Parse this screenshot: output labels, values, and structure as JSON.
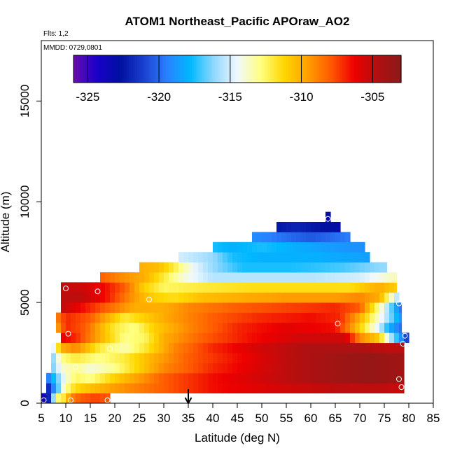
{
  "chart_data": {
    "type": "heatmap",
    "title": "ATOM1 Northeast_Pacific APOraw_AO2",
    "annotations": [
      "Flts: 1,2",
      "MMDD: 0729,0801"
    ],
    "xlabel": "Latitude (deg N)",
    "ylabel": "Altitude (m)",
    "xlim": [
      5,
      85
    ],
    "ylim": [
      0,
      18000
    ],
    "xticks": [
      5,
      10,
      15,
      20,
      25,
      30,
      35,
      40,
      45,
      50,
      55,
      60,
      65,
      70,
      75,
      80,
      85
    ],
    "yticks": [
      0,
      5000,
      10000,
      15000
    ],
    "colorbar": {
      "min": -326,
      "max": -303,
      "ticks": [
        -325,
        -320,
        -315,
        -310,
        -305
      ],
      "colors": [
        "#6a0dad",
        "#1a00c8",
        "#0010a0",
        "#1a40d0",
        "#2a80ff",
        "#00b8ff",
        "#90d8ff",
        "#f0f8ff",
        "#ffff80",
        "#ffd700",
        "#ff9f00",
        "#ff5a00",
        "#ee0000",
        "#b01010",
        "#8b1a1a"
      ]
    },
    "marker": {
      "x": 35,
      "label": "arrow"
    },
    "rows": [
      {
        "y0": 0,
        "y1": 500,
        "x0": 5,
        "x1": 19,
        "anchors": [
          [
            5,
            -325
          ],
          [
            6.5,
            -322
          ],
          [
            8,
            -313
          ],
          [
            9.5,
            -312
          ],
          [
            11,
            -309
          ],
          [
            13,
            -308
          ],
          [
            16,
            -307.5
          ],
          [
            19,
            -308
          ]
        ]
      },
      {
        "y0": 500,
        "y1": 1000,
        "x0": 6,
        "x1": 79,
        "anchors": [
          [
            6,
            -323
          ],
          [
            8,
            -318
          ],
          [
            9.5,
            -314
          ],
          [
            11,
            -312
          ],
          [
            13,
            -311
          ],
          [
            20,
            -309.5
          ],
          [
            30,
            -308
          ],
          [
            40,
            -306.5
          ],
          [
            55,
            -305.5
          ],
          [
            65,
            -305
          ],
          [
            75,
            -305
          ],
          [
            79,
            -305.5
          ]
        ]
      },
      {
        "y0": 1000,
        "y1": 1500,
        "x0": 6,
        "x1": 79,
        "anchors": [
          [
            6,
            -320
          ],
          [
            8,
            -317
          ],
          [
            10,
            -314
          ],
          [
            12,
            -312.5
          ],
          [
            15,
            -313
          ],
          [
            20,
            -311
          ],
          [
            30,
            -308
          ],
          [
            40,
            -306.5
          ],
          [
            55,
            -305
          ],
          [
            65,
            -304
          ],
          [
            72,
            -303.5
          ],
          [
            79,
            -304
          ]
        ]
      },
      {
        "y0": 1500,
        "y1": 2000,
        "x0": 7,
        "x1": 79,
        "anchors": [
          [
            7,
            -317
          ],
          [
            9,
            -314
          ],
          [
            12,
            -313
          ],
          [
            15,
            -314
          ],
          [
            20,
            -313
          ],
          [
            25,
            -311
          ],
          [
            30,
            -309
          ],
          [
            40,
            -307
          ],
          [
            55,
            -305
          ],
          [
            65,
            -304
          ],
          [
            72,
            -303.5
          ],
          [
            79,
            -304
          ]
        ]
      },
      {
        "y0": 2000,
        "y1": 2500,
        "x0": 7,
        "x1": 79,
        "anchors": [
          [
            7,
            -317
          ],
          [
            9,
            -313
          ],
          [
            12,
            -312
          ],
          [
            17,
            -313
          ],
          [
            22,
            -312
          ],
          [
            28,
            -310
          ],
          [
            35,
            -308
          ],
          [
            45,
            -306.5
          ],
          [
            55,
            -305
          ],
          [
            65,
            -304
          ],
          [
            72,
            -303.5
          ],
          [
            79,
            -304
          ]
        ]
      },
      {
        "y0": 2500,
        "y1": 3000,
        "x0": 7,
        "x1": 79,
        "anchors": [
          [
            7,
            -316
          ],
          [
            9,
            -310
          ],
          [
            12,
            -309
          ],
          [
            17,
            -312
          ],
          [
            22,
            -313.5
          ],
          [
            26,
            -312
          ],
          [
            32,
            -309
          ],
          [
            40,
            -307
          ],
          [
            50,
            -305.5
          ],
          [
            60,
            -304.5
          ],
          [
            70,
            -304.5
          ],
          [
            75,
            -305
          ],
          [
            79,
            -305
          ]
        ]
      },
      {
        "y0": 3000,
        "y1": 3500,
        "x0": 9,
        "x1": 80,
        "anchors": [
          [
            9,
            -306
          ],
          [
            12,
            -307
          ],
          [
            17,
            -310
          ],
          [
            22,
            -313
          ],
          [
            26,
            -312.5
          ],
          [
            30,
            -310
          ],
          [
            38,
            -308
          ],
          [
            48,
            -306.5
          ],
          [
            58,
            -305.5
          ],
          [
            67,
            -305.5
          ],
          [
            70,
            -309
          ],
          [
            74,
            -311
          ],
          [
            76,
            -315
          ],
          [
            78,
            -318
          ],
          [
            80,
            -322
          ]
        ]
      },
      {
        "y0": 3500,
        "y1": 4000,
        "x0": 8,
        "x1": 78.5,
        "anchors": [
          [
            8,
            -310
          ],
          [
            10,
            -307
          ],
          [
            14,
            -308
          ],
          [
            20,
            -312
          ],
          [
            24,
            -313
          ],
          [
            28,
            -311
          ],
          [
            35,
            -309
          ],
          [
            45,
            -307
          ],
          [
            55,
            -306
          ],
          [
            65,
            -306.5
          ],
          [
            68,
            -309
          ],
          [
            71,
            -312
          ],
          [
            74,
            -315
          ],
          [
            76,
            -318
          ],
          [
            78.5,
            -320
          ]
        ]
      },
      {
        "y0": 4000,
        "y1": 4500,
        "x0": 8,
        "x1": 78.5,
        "anchors": [
          [
            8,
            -309
          ],
          [
            10,
            -307
          ],
          [
            15,
            -308
          ],
          [
            22,
            -312
          ],
          [
            26,
            -311
          ],
          [
            32,
            -309.5
          ],
          [
            40,
            -308
          ],
          [
            50,
            -307
          ],
          [
            60,
            -306.5
          ],
          [
            66,
            -307
          ],
          [
            70,
            -310
          ],
          [
            73,
            -313
          ],
          [
            76,
            -316
          ],
          [
            78.5,
            -319
          ]
        ]
      },
      {
        "y0": 4500,
        "y1": 5000,
        "x0": 9,
        "x1": 78.5,
        "anchors": [
          [
            9,
            -305
          ],
          [
            12,
            -306
          ],
          [
            18,
            -308
          ],
          [
            24,
            -310
          ],
          [
            30,
            -310
          ],
          [
            35,
            -309
          ],
          [
            45,
            -308
          ],
          [
            55,
            -307.5
          ],
          [
            65,
            -307
          ],
          [
            70,
            -308
          ],
          [
            73,
            -312
          ],
          [
            76,
            -316
          ],
          [
            78.5,
            -320
          ]
        ]
      },
      {
        "y0": 5000,
        "y1": 5500,
        "x0": 9,
        "x1": 78,
        "anchors": [
          [
            9,
            -305
          ],
          [
            13,
            -305
          ],
          [
            18,
            -306.5
          ],
          [
            24,
            -309.5
          ],
          [
            28,
            -311
          ],
          [
            32,
            -311.5
          ],
          [
            38,
            -310.5
          ],
          [
            45,
            -310
          ],
          [
            55,
            -309.5
          ],
          [
            65,
            -309.5
          ],
          [
            70,
            -309
          ],
          [
            74,
            -310
          ],
          [
            76,
            -313
          ],
          [
            78,
            -316
          ]
        ]
      },
      {
        "y0": 5500,
        "y1": 6000,
        "x0": 9,
        "x1": 77.5,
        "anchors": [
          [
            9,
            -305
          ],
          [
            14,
            -305.5
          ],
          [
            18,
            -306.5
          ],
          [
            22,
            -308
          ],
          [
            26,
            -311
          ],
          [
            30,
            -312.5
          ],
          [
            38,
            -312
          ],
          [
            48,
            -311.5
          ],
          [
            58,
            -311.5
          ],
          [
            68,
            -311.5
          ],
          [
            74,
            -310
          ],
          [
            77.5,
            -311
          ]
        ]
      },
      {
        "y0": 6000,
        "y1": 6500,
        "x0": 17,
        "x1": 77.5,
        "anchors": [
          [
            17,
            -308
          ],
          [
            21,
            -309
          ],
          [
            26,
            -310
          ],
          [
            30,
            -312
          ],
          [
            34,
            -314
          ],
          [
            40,
            -315.5
          ],
          [
            50,
            -315.5
          ],
          [
            60,
            -315.5
          ],
          [
            70,
            -315
          ],
          [
            77.5,
            -313.5
          ]
        ]
      },
      {
        "y0": 6500,
        "y1": 7000,
        "x0": 25,
        "x1": 75.5,
        "anchors": [
          [
            25,
            -310
          ],
          [
            29,
            -310.5
          ],
          [
            32,
            -312
          ],
          [
            36,
            -314.5
          ],
          [
            40,
            -316
          ],
          [
            46,
            -317.5
          ],
          [
            56,
            -317.5
          ],
          [
            66,
            -317
          ],
          [
            75.5,
            -316
          ]
        ]
      },
      {
        "y0": 7000,
        "y1": 7500,
        "x0": 33,
        "x1": 72,
        "anchors": [
          [
            33,
            -315
          ],
          [
            37,
            -315.5
          ],
          [
            40,
            -316
          ],
          [
            44,
            -317.5
          ],
          [
            50,
            -318
          ],
          [
            60,
            -318
          ],
          [
            72,
            -318.5
          ]
        ]
      },
      {
        "y0": 7500,
        "y1": 8000,
        "x0": 40,
        "x1": 71,
        "anchors": [
          [
            40,
            -317.5
          ],
          [
            44,
            -318
          ],
          [
            50,
            -317.5
          ],
          [
            56,
            -318
          ],
          [
            62,
            -318.5
          ],
          [
            71,
            -319
          ]
        ]
      },
      {
        "y0": 8000,
        "y1": 8500,
        "x0": 48,
        "x1": 68,
        "anchors": [
          [
            48,
            -319
          ],
          [
            52,
            -319.5
          ],
          [
            56,
            -320
          ],
          [
            60,
            -320.5
          ],
          [
            64,
            -320
          ],
          [
            68,
            -319.5
          ]
        ]
      },
      {
        "y0": 8500,
        "y1": 9000,
        "x0": 53,
        "x1": 66,
        "anchors": [
          [
            53,
            -322.5
          ],
          [
            57,
            -322
          ],
          [
            61,
            -322.5
          ],
          [
            66,
            -323
          ]
        ]
      },
      {
        "y0": 9000,
        "y1": 9500,
        "x0": 63,
        "x1": 64,
        "anchors": [
          [
            63,
            -323
          ],
          [
            64,
            -323
          ]
        ]
      }
    ],
    "points": [
      {
        "x": 5.5,
        "y": 150
      },
      {
        "x": 11,
        "y": 150
      },
      {
        "x": 18.5,
        "y": 150
      },
      {
        "x": 78.5,
        "y": 800
      },
      {
        "x": 78,
        "y": 1200
      },
      {
        "x": 12,
        "y": 1800
      },
      {
        "x": 19,
        "y": 2700
      },
      {
        "x": 78.8,
        "y": 2950
      },
      {
        "x": 79.2,
        "y": 3350
      },
      {
        "x": 10.5,
        "y": 3450
      },
      {
        "x": 65.5,
        "y": 3950
      },
      {
        "x": 78,
        "y": 4950
      },
      {
        "x": 27,
        "y": 5150
      },
      {
        "x": 16.5,
        "y": 5550
      },
      {
        "x": 10,
        "y": 5700
      },
      {
        "x": 63.5,
        "y": 9150
      }
    ]
  }
}
